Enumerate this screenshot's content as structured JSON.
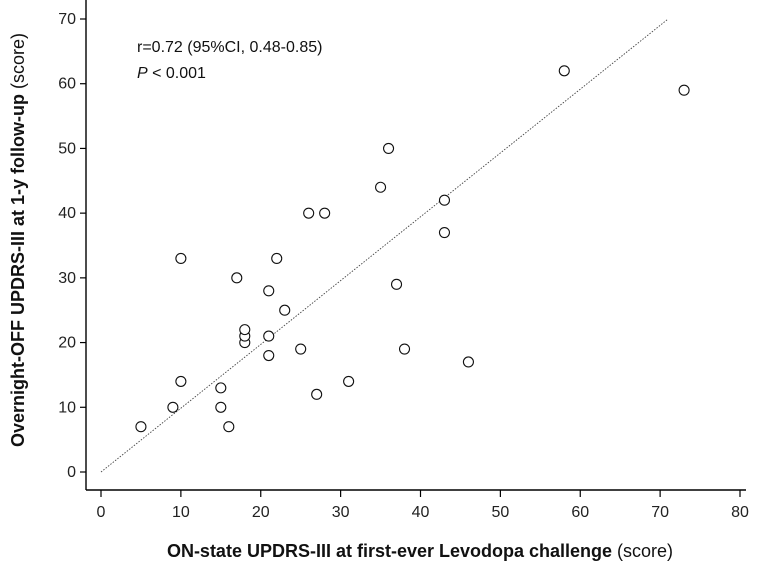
{
  "chart_data": {
    "type": "scatter",
    "xlabel_bold": "ON-state UPDRS-III at first-ever Levodopa challenge",
    "xlabel_unit": "(score)",
    "ylabel_bold": "Overnight-OFF UPDRS-III at 1-y follow-up",
    "ylabel_unit": "(score)",
    "xlim": [
      0,
      80
    ],
    "ylim": [
      0,
      70
    ],
    "x_ticks": [
      0,
      10,
      20,
      30,
      40,
      50,
      60,
      70,
      80
    ],
    "y_ticks": [
      0,
      10,
      20,
      30,
      40,
      50,
      60,
      70
    ],
    "grid": false,
    "annotation_line1": "r=0.72 (95%CI, 0.48-0.85)",
    "annotation_p_symbol": "P",
    "annotation_p_rest": " < 0.001",
    "trend_line": {
      "x": [
        0,
        71
      ],
      "y": [
        0,
        70
      ]
    },
    "points": [
      {
        "x": 5,
        "y": 7
      },
      {
        "x": 9,
        "y": 10
      },
      {
        "x": 10,
        "y": 14
      },
      {
        "x": 10,
        "y": 33
      },
      {
        "x": 15,
        "y": 10
      },
      {
        "x": 15,
        "y": 13
      },
      {
        "x": 16,
        "y": 7
      },
      {
        "x": 17,
        "y": 30
      },
      {
        "x": 18,
        "y": 20
      },
      {
        "x": 18,
        "y": 21
      },
      {
        "x": 18,
        "y": 22
      },
      {
        "x": 21,
        "y": 18
      },
      {
        "x": 21,
        "y": 21
      },
      {
        "x": 21,
        "y": 28
      },
      {
        "x": 22,
        "y": 33
      },
      {
        "x": 23,
        "y": 25
      },
      {
        "x": 25,
        "y": 19
      },
      {
        "x": 26,
        "y": 40
      },
      {
        "x": 27,
        "y": 12
      },
      {
        "x": 28,
        "y": 40
      },
      {
        "x": 31,
        "y": 14
      },
      {
        "x": 35,
        "y": 44
      },
      {
        "x": 36,
        "y": 50
      },
      {
        "x": 37,
        "y": 29
      },
      {
        "x": 38,
        "y": 19
      },
      {
        "x": 43,
        "y": 37
      },
      {
        "x": 43,
        "y": 42
      },
      {
        "x": 46,
        "y": 17
      },
      {
        "x": 58,
        "y": 62
      },
      {
        "x": 73,
        "y": 59
      }
    ]
  }
}
